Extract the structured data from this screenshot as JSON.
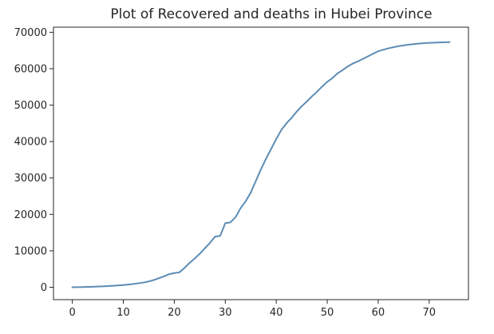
{
  "chart_data": {
    "type": "line",
    "title": "Plot of Recovered and deaths in Hubei Province",
    "xlabel": "",
    "ylabel": "",
    "xlim": [
      -3.7,
      77.7
    ],
    "ylim": [
      -3400,
      71400
    ],
    "x_ticks": [
      0,
      10,
      20,
      30,
      40,
      50,
      60,
      70
    ],
    "y_ticks": [
      0,
      10000,
      20000,
      30000,
      40000,
      50000,
      60000,
      70000
    ],
    "grid": false,
    "legend": "none",
    "colors": {
      "line": "#5b8cb5",
      "axis": "#262626"
    },
    "series": [
      {
        "x": [
          0,
          2,
          4,
          6,
          8,
          10,
          12,
          14,
          15,
          16,
          17,
          18,
          19,
          20,
          21,
          22,
          23,
          24,
          25,
          26,
          27,
          28,
          29,
          30,
          31,
          32,
          33,
          34,
          35,
          36,
          37,
          38,
          39,
          40,
          41,
          42,
          43,
          44,
          45,
          46,
          47,
          48,
          49,
          50,
          51,
          52,
          53,
          54,
          55,
          56,
          57,
          58,
          59,
          60,
          62,
          64,
          66,
          68,
          70,
          72,
          74
        ],
        "y": [
          0,
          50,
          150,
          250,
          400,
          600,
          900,
          1300,
          1600,
          2000,
          2500,
          3000,
          3600,
          3900,
          4100,
          5300,
          6700,
          7900,
          9200,
          10700,
          12200,
          13900,
          14100,
          17600,
          17800,
          19200,
          21700,
          23600,
          26000,
          29200,
          32400,
          35300,
          38000,
          40700,
          43200,
          45000,
          46500,
          48200,
          49700,
          51000,
          52400,
          53700,
          55100,
          56400,
          57400,
          58700,
          59600,
          60600,
          61400,
          62000,
          62700,
          63400,
          64100,
          64800,
          65600,
          66200,
          66600,
          66900,
          67100,
          67200,
          67300
        ]
      }
    ]
  }
}
